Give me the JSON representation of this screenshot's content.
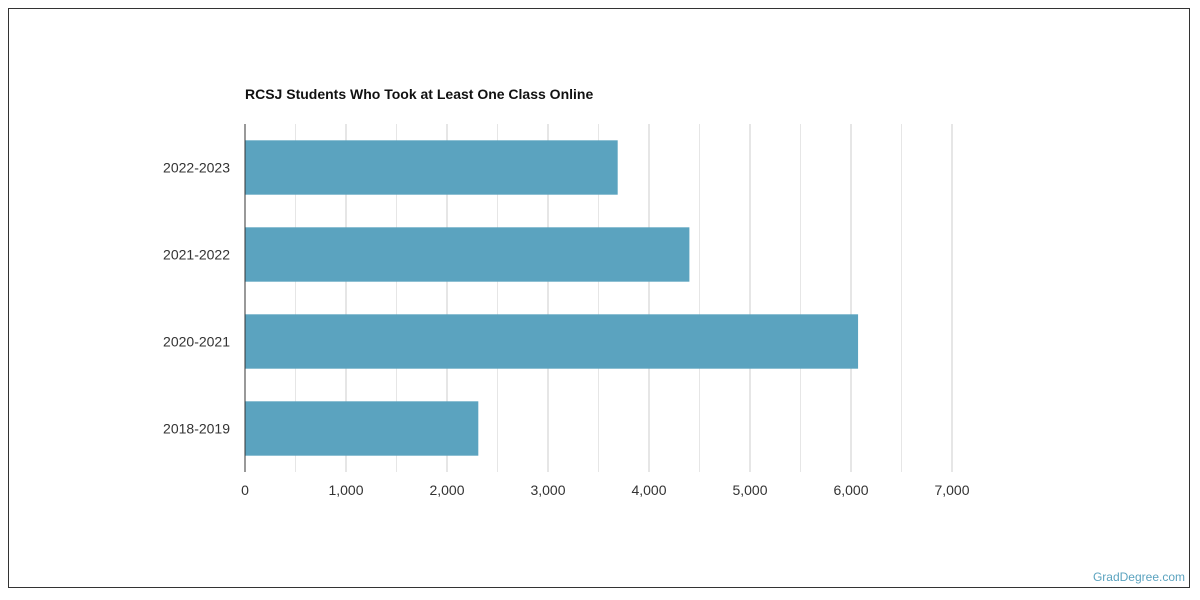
{
  "chart_data": {
    "type": "bar",
    "orientation": "horizontal",
    "title": "RCSJ Students Who Took at Least One Class Online",
    "categories": [
      "2022-2023",
      "2021-2022",
      "2020-2021",
      "2018-2019"
    ],
    "values": [
      3690,
      4400,
      6070,
      2310
    ],
    "xlim": [
      0,
      7000
    ],
    "x_ticks": [
      0,
      1000,
      2000,
      3000,
      4000,
      5000,
      6000,
      7000
    ],
    "x_tick_labels": [
      "0",
      "1,000",
      "2,000",
      "3,000",
      "4,000",
      "5,000",
      "6,000",
      "7,000"
    ],
    "grid": true,
    "bar_color": "#5ba3bf"
  },
  "watermark": {
    "text": "GradDegree.com",
    "color": "#5ba3bf"
  }
}
